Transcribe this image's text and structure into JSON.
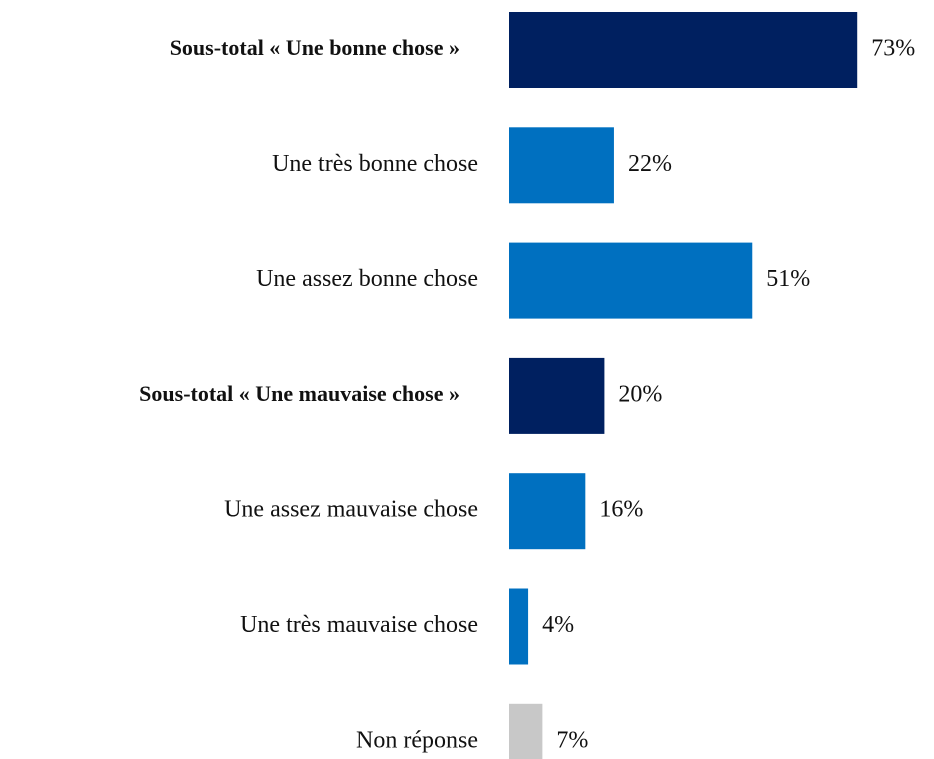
{
  "chart_data": {
    "type": "bar",
    "orientation": "horizontal",
    "categories": [
      "Sous-total « Une bonne chose »",
      "Une très bonne chose",
      "Une assez bonne chose",
      "Sous-total « Une mauvaise chose »",
      "Une assez mauvaise chose",
      "Une très mauvaise chose",
      "Non réponse"
    ],
    "values": [
      73,
      22,
      51,
      20,
      16,
      4,
      7
    ],
    "value_labels": [
      "73%",
      "22%",
      "51%",
      "20%",
      "16%",
      "4%",
      "7%"
    ],
    "colors": [
      "#002060",
      "#0070c0",
      "#0070c0",
      "#002060",
      "#0070c0",
      "#0070c0",
      "#c8c8c8"
    ],
    "bold": [
      true,
      false,
      false,
      true,
      false,
      false,
      false
    ]
  }
}
